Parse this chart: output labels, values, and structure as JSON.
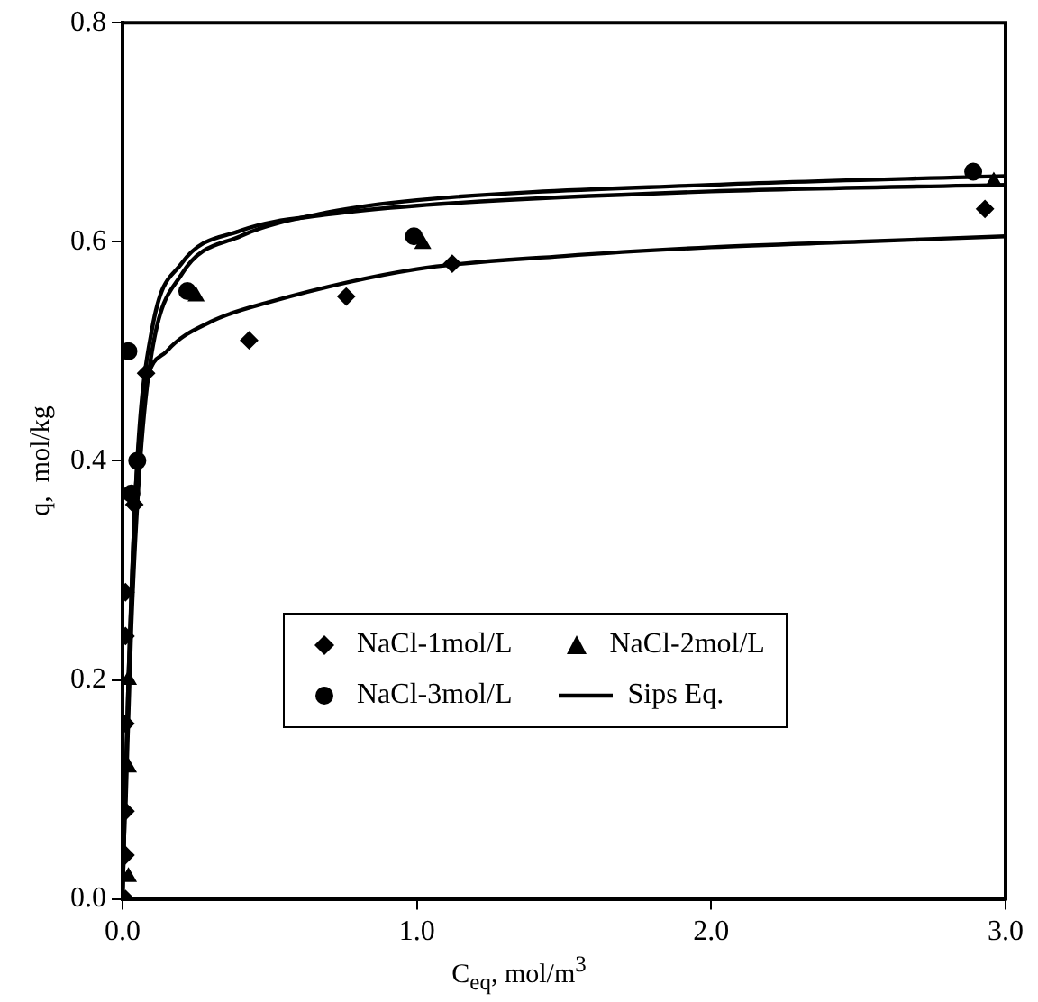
{
  "chart_data": {
    "type": "scatter",
    "xlabel": "C$_{eq}$,  mol/m$^{3}$",
    "ylabel": "q,  mol/kg",
    "xlim": [
      0,
      3
    ],
    "xticks": [
      {
        "value": 0,
        "label": "0.0"
      },
      {
        "value": 1,
        "label": "1.0"
      },
      {
        "value": 2,
        "label": "2.0"
      },
      {
        "value": 3,
        "label": "3.0"
      }
    ],
    "ylim": [
      0,
      0.8
    ],
    "yticks": [
      {
        "value": 0,
        "label": "0.0"
      },
      {
        "value": 0.2,
        "label": "0.2"
      },
      {
        "value": 0.4,
        "label": "0.4"
      },
      {
        "value": 0.6,
        "label": "0.6"
      },
      {
        "value": 0.8,
        "label": "0.8"
      }
    ],
    "grid": false,
    "legend": "bottom right",
    "series": [
      {
        "name": "NaCl-1mol/L",
        "color": "#000000",
        "marker": "diamond",
        "x": [
          0.01,
          0.01,
          0.01,
          0.01,
          0.01,
          0.01,
          0.04,
          0.08,
          0.43,
          0.76,
          1.12,
          2.93
        ],
        "values": [
          0.0,
          0.04,
          0.08,
          0.16,
          0.24,
          0.28,
          0.36,
          0.48,
          0.51,
          0.55,
          0.58,
          0.63
        ]
      },
      {
        "name": "NaCl-2mol/L",
        "color": "#000000",
        "marker": "triangle",
        "x": [
          0.02,
          0.02,
          0.02,
          0.25,
          1.02,
          2.96
        ],
        "values": [
          0.02,
          0.12,
          0.2,
          0.55,
          0.598,
          0.655
        ]
      },
      {
        "name": "NaCl-3mol/L",
        "color": "#000000",
        "marker": "circle",
        "x": [
          0.03,
          0.05,
          0.02,
          0.22,
          0.99,
          2.89
        ],
        "values": [
          0.37,
          0.4,
          0.5,
          0.555,
          0.605,
          0.664
        ]
      },
      {
        "name": "Sips Eq.",
        "type": "line",
        "color": "#000000",
        "marker": "none",
        "x": [
          0,
          0.02,
          0.04,
          0.06,
          0.08,
          0.15,
          0.3,
          0.5,
          1.0,
          1.5,
          2.0,
          2.5,
          3.0
        ],
        "values": [
          0,
          0.2,
          0.35,
          0.43,
          0.47,
          0.5,
          0.527,
          0.545,
          0.575,
          0.587,
          0.595,
          0.6,
          0.605
        ]
      },
      {
        "type": "line",
        "color": "#000000",
        "marker": "none",
        "x": [
          0,
          0.02,
          0.05,
          0.1,
          0.2,
          0.4,
          0.7,
          1.0,
          2.0,
          3.0
        ],
        "values": [
          0,
          0.2,
          0.4,
          0.52,
          0.58,
          0.61,
          0.625,
          0.633,
          0.646,
          0.652
        ]
      },
      {
        "type": "line",
        "color": "#000000",
        "marker": "none",
        "x": [
          0.01,
          0.03,
          0.06,
          0.1,
          0.2,
          0.4,
          0.7,
          1.0,
          2.0,
          3.0
        ],
        "values": [
          0.08,
          0.25,
          0.4,
          0.5,
          0.57,
          0.605,
          0.627,
          0.638,
          0.652,
          0.66
        ]
      }
    ]
  }
}
